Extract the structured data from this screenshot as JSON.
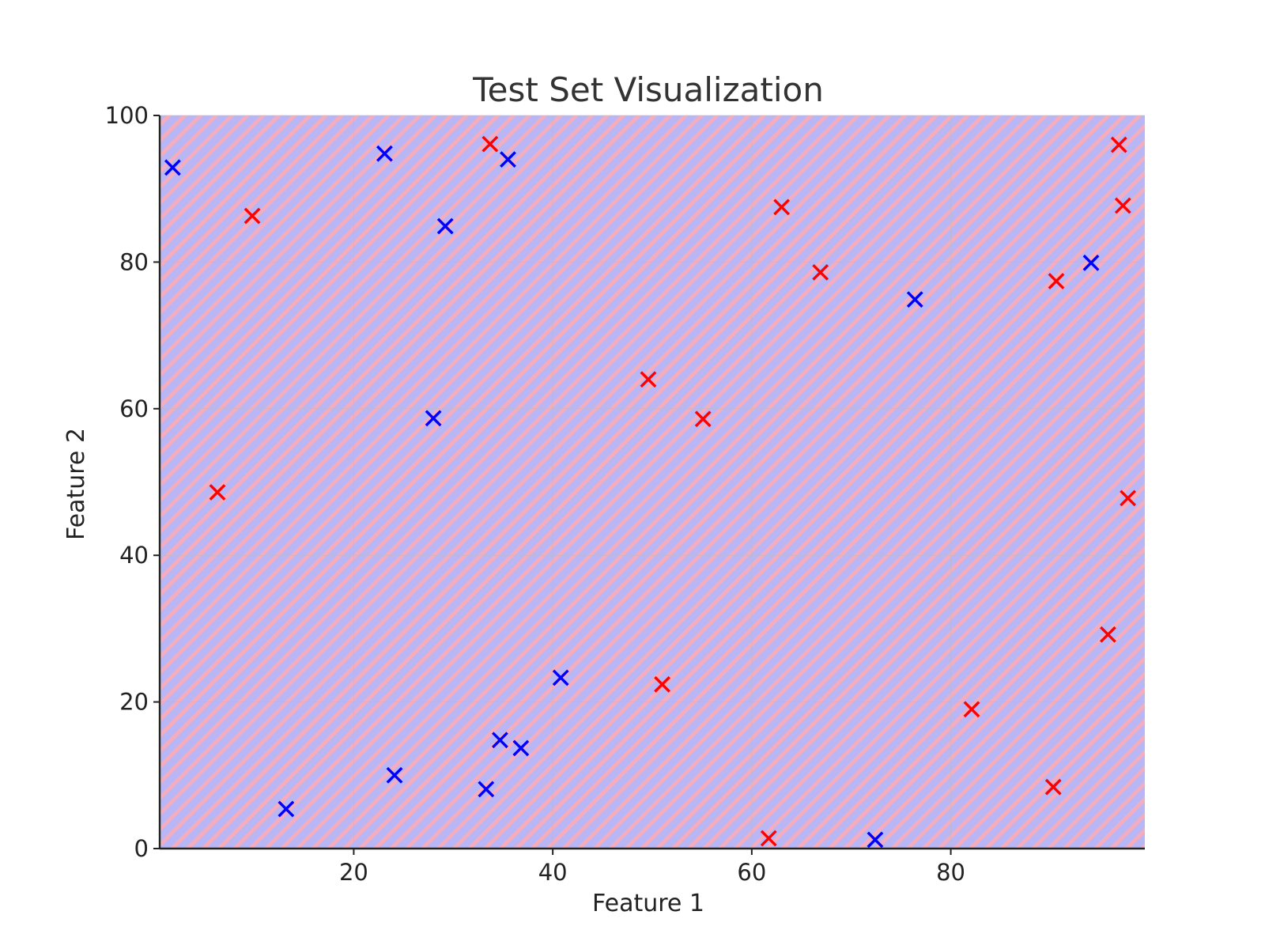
{
  "chart_data": {
    "type": "scatter",
    "title": "Test Set Visualization",
    "xlabel": "Feature 1",
    "ylabel": "Feature 2",
    "xlim": [
      0.5,
      99.5
    ],
    "ylim": [
      0,
      100
    ],
    "xticks": [
      20,
      40,
      60,
      80
    ],
    "yticks": [
      0,
      20,
      40,
      60,
      80,
      100
    ],
    "grid": true,
    "marker": "x",
    "background": "decision-region hatch (red/blue diagonal stripes)",
    "colors": {
      "class_red": "#ff0000",
      "class_blue": "#0000ff",
      "region_red": "#f4a7b9",
      "region_blue": "#b3b3f7"
    },
    "series": [
      {
        "color": "#ff0000",
        "points": [
          [
            33.7,
            96.1
          ],
          [
            9.8,
            86.3
          ],
          [
            63.0,
            87.5
          ],
          [
            66.9,
            78.6
          ],
          [
            96.9,
            96.0
          ],
          [
            97.3,
            87.7
          ],
          [
            90.6,
            77.4
          ],
          [
            49.6,
            64.0
          ],
          [
            55.1,
            58.6
          ],
          [
            6.3,
            48.6
          ],
          [
            97.8,
            47.8
          ],
          [
            95.8,
            29.2
          ],
          [
            51.0,
            22.4
          ],
          [
            82.1,
            19.0
          ],
          [
            90.3,
            8.4
          ],
          [
            61.7,
            1.4
          ]
        ]
      },
      {
        "color": "#0000ff",
        "points": [
          [
            1.8,
            92.9
          ],
          [
            23.1,
            94.8
          ],
          [
            35.5,
            94.0
          ],
          [
            29.2,
            84.9
          ],
          [
            94.1,
            79.9
          ],
          [
            76.4,
            74.9
          ],
          [
            28.0,
            58.7
          ],
          [
            40.8,
            23.3
          ],
          [
            34.7,
            14.8
          ],
          [
            36.8,
            13.7
          ],
          [
            24.1,
            10.0
          ],
          [
            33.3,
            8.1
          ],
          [
            13.2,
            5.4
          ],
          [
            72.4,
            1.2
          ]
        ]
      }
    ]
  }
}
